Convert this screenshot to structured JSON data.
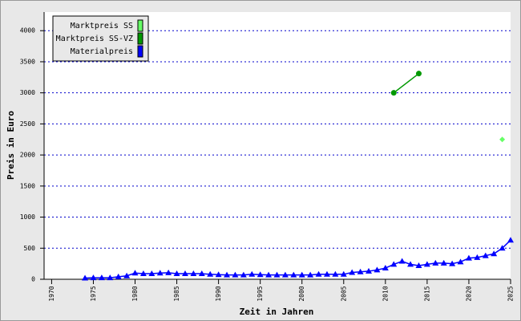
{
  "chart_data": {
    "type": "line",
    "y_label": "Preis in Euro",
    "x_label": "Zeit in Jahren",
    "xlim": [
      1969,
      2025
    ],
    "xticks": [
      1970,
      1975,
      1980,
      1985,
      1990,
      1995,
      2000,
      2005,
      2010,
      2015,
      2020,
      2025
    ],
    "ylim": [
      0,
      4300
    ],
    "yticks": [
      0,
      500,
      1000,
      1500,
      2000,
      2500,
      3000,
      3500,
      4000
    ],
    "grid": true,
    "legend": "upper left",
    "series": [
      {
        "name": "Marktpreis SS",
        "color": "#66ff66",
        "marker": "diamond",
        "x": [
          2024
        ],
        "values": [
          2250
        ]
      },
      {
        "name": "Marktpreis SS-VZ",
        "color": "#009900",
        "marker": "circle",
        "x": [
          2011,
          2014
        ],
        "values": [
          3000,
          3310
        ]
      },
      {
        "name": "Materialpreis",
        "color": "#0000ff",
        "marker": "triangle",
        "x": [
          1974,
          1975,
          1976,
          1977,
          1978,
          1979,
          1980,
          1981,
          1982,
          1983,
          1984,
          1985,
          1986,
          1987,
          1988,
          1989,
          1990,
          1991,
          1992,
          1993,
          1994,
          1995,
          1996,
          1997,
          1998,
          1999,
          2000,
          2001,
          2002,
          2003,
          2004,
          2005,
          2006,
          2007,
          2008,
          2009,
          2010,
          2011,
          2012,
          2013,
          2014,
          2015,
          2016,
          2017,
          2018,
          2019,
          2020,
          2021,
          2022,
          2023,
          2024,
          2025
        ],
        "values": [
          20,
          25,
          25,
          25,
          40,
          55,
          100,
          90,
          90,
          100,
          105,
          90,
          90,
          90,
          90,
          80,
          75,
          70,
          70,
          70,
          80,
          75,
          70,
          70,
          70,
          70,
          70,
          70,
          80,
          80,
          80,
          80,
          110,
          120,
          130,
          150,
          180,
          240,
          290,
          240,
          220,
          240,
          260,
          260,
          250,
          280,
          340,
          350,
          380,
          410,
          500,
          630
        ]
      }
    ]
  }
}
